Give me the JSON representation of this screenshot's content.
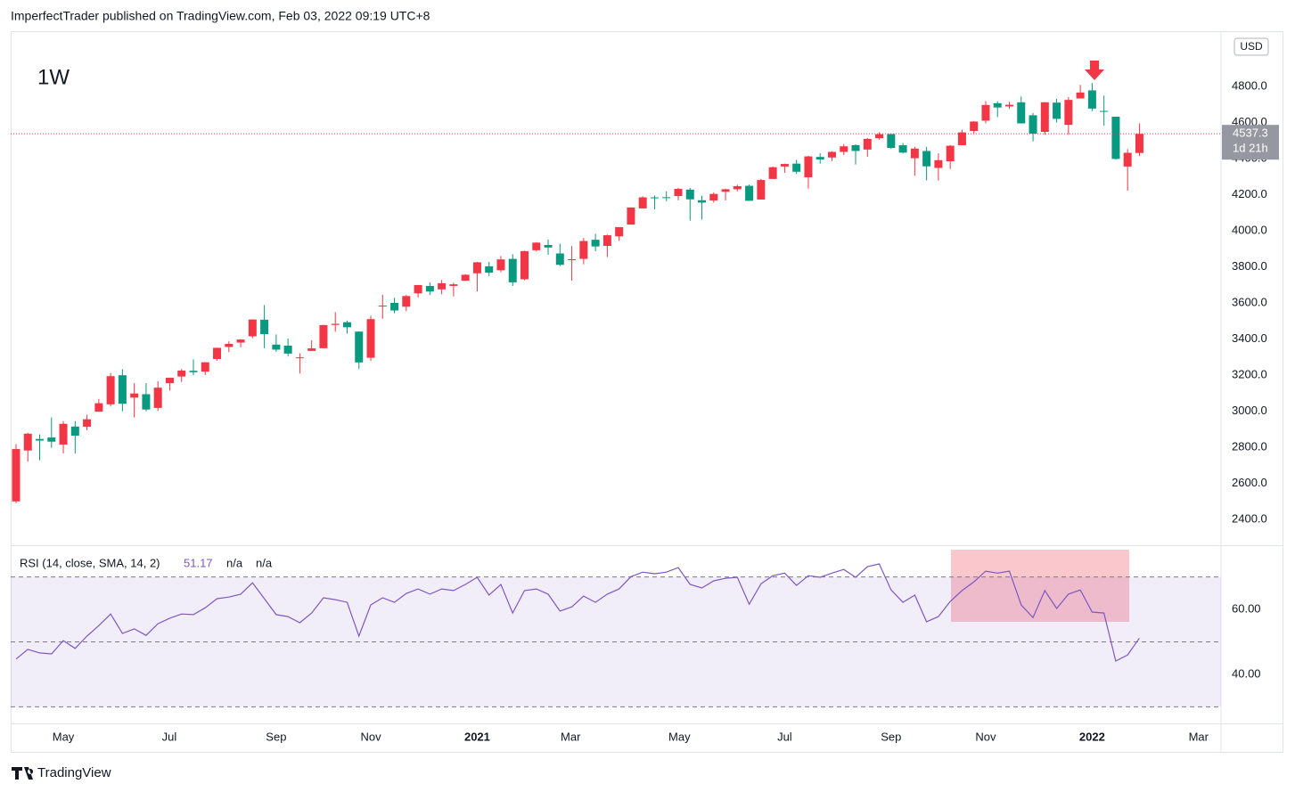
{
  "page": {
    "published": "ImperfectTrader published on TradingView.com, Feb 03, 2022 09:19 UTC+8",
    "brand": "TradingView"
  },
  "chart_data": {
    "type": "candlestick",
    "interval": "1W",
    "currency": "USD",
    "up_color": "#f23645",
    "down_color": "#089981",
    "open": [
      2500,
      2782,
      2846,
      2854,
      2815,
      2915,
      2914,
      2997,
      3038,
      3199,
      3075,
      3094,
      3018,
      3155,
      3192,
      3224,
      3219,
      3289,
      3356,
      3380,
      3415,
      3507,
      3369,
      3363,
      3295,
      3334,
      3349,
      3478,
      3493,
      3441,
      3296,
      3583,
      3600,
      3579,
      3653,
      3694,
      3675,
      3694,
      3723,
      3764,
      3803,
      3781,
      3844,
      3731,
      3892,
      3921,
      3874,
      3842,
      3844,
      3950,
      3916,
      3969,
      4034,
      4124,
      4185,
      4186,
      4192,
      4228,
      4169,
      4168,
      4216,
      4230,
      4249,
      4173,
      4287,
      4356,
      4372,
      4296,
      4409,
      4406,
      4437,
      4474,
      4450,
      4513,
      4536,
      4474,
      4402,
      4442,
      4348,
      4385,
      4474,
      4553,
      4610,
      4707,
      4689,
      4712,
      4640,
      4548,
      4710,
      4587,
      4733,
      4778,
      4664,
      4632,
      4356,
      4431
    ],
    "high": [
      2818,
      2880,
      2871,
      2965,
      2945,
      2945,
      2980,
      3068,
      3211,
      3233,
      3155,
      3155,
      3166,
      3186,
      3234,
      3287,
      3272,
      3352,
      3387,
      3399,
      3509,
      3588,
      3425,
      3403,
      3321,
      3393,
      3479,
      3549,
      3502,
      3441,
      3529,
      3645,
      3628,
      3644,
      3699,
      3713,
      3727,
      3712,
      3760,
      3827,
      3827,
      3860,
      3870,
      3889,
      3937,
      3951,
      3928,
      3915,
      3960,
      3983,
      3979,
      4020,
      4129,
      4191,
      4195,
      4219,
      4238,
      4238,
      4194,
      4213,
      4233,
      4255,
      4256,
      4287,
      4356,
      4372,
      4393,
      4415,
      4429,
      4440,
      4480,
      4480,
      4513,
      4546,
      4537,
      4486,
      4466,
      4465,
      4429,
      4475,
      4560,
      4608,
      4719,
      4718,
      4714,
      4744,
      4653,
      4713,
      4731,
      4741,
      4808,
      4819,
      4749,
      4632,
      4453,
      4595
    ],
    "low": [
      2490,
      2720,
      2728,
      2797,
      2766,
      2766,
      2894,
      2997,
      3026,
      2999,
      2965,
      2999,
      3001,
      3115,
      3162,
      3199,
      3200,
      3280,
      3328,
      3354,
      3404,
      3349,
      3329,
      3305,
      3209,
      3334,
      3349,
      3440,
      3430,
      3234,
      3279,
      3512,
      3543,
      3555,
      3630,
      3644,
      3648,
      3636,
      3722,
      3663,
      3749,
      3770,
      3694,
      3726,
      3885,
      3867,
      3804,
      3723,
      3814,
      3887,
      3854,
      3944,
      4034,
      4123,
      4118,
      4164,
      4169,
      4056,
      4062,
      4156,
      4168,
      4219,
      4165,
      4173,
      4286,
      4321,
      4315,
      4233,
      4372,
      4386,
      4420,
      4367,
      4410,
      4505,
      4453,
      4428,
      4305,
      4279,
      4278,
      4342,
      4474,
      4537,
      4595,
      4630,
      4675,
      4595,
      4495,
      4532,
      4600,
      4532,
      4733,
      4662,
      4582,
      4395,
      4222,
      4414
    ],
    "close": [
      2790,
      2875,
      2837,
      2831,
      2930,
      2864,
      2955,
      3044,
      3194,
      3041,
      3098,
      3009,
      3130,
      3185,
      3225,
      3216,
      3271,
      3351,
      3373,
      3397,
      3508,
      3427,
      3341,
      3319,
      3298,
      3348,
      3477,
      3484,
      3465,
      3270,
      3510,
      3585,
      3558,
      3638,
      3699,
      3663,
      3709,
      3703,
      3756,
      3825,
      3768,
      3841,
      3714,
      3887,
      3934,
      3907,
      3811,
      3842,
      3943,
      3913,
      3975,
      4020,
      4129,
      4185,
      4180,
      4181,
      4232,
      4174,
      4156,
      4204,
      4230,
      4247,
      4166,
      4281,
      4352,
      4370,
      4327,
      4412,
      4395,
      4437,
      4468,
      4442,
      4509,
      4535,
      4459,
      4433,
      4455,
      4357,
      4391,
      4471,
      4545,
      4605,
      4697,
      4683,
      4698,
      4595,
      4538,
      4712,
      4620,
      4725,
      4766,
      4677,
      4663,
      4398,
      4432,
      4537
    ],
    "last_price": 4537.3,
    "countdown": "1d 21h",
    "xlim": [
      -0.45,
      101.9
    ],
    "ylim": [
      2257,
      5106
    ],
    "yticks": [
      {
        "value": 2400,
        "label": "2400.0"
      },
      {
        "value": 2600,
        "label": "2600.0"
      },
      {
        "value": 2800,
        "label": "2800.0"
      },
      {
        "value": 3000,
        "label": "3000.0"
      },
      {
        "value": 3200,
        "label": "3200.0"
      },
      {
        "value": 3400,
        "label": "3400.0"
      },
      {
        "value": 3600,
        "label": "3600.0"
      },
      {
        "value": 3800,
        "label": "3800.0"
      },
      {
        "value": 4000,
        "label": "4000.0"
      },
      {
        "value": 4200,
        "label": "4200.0"
      },
      {
        "value": 4400,
        "label": "4400.0"
      },
      {
        "value": 4600,
        "label": "4600.0"
      },
      {
        "value": 4800,
        "label": "4800.0"
      }
    ],
    "xticks": [
      {
        "value": 4.0,
        "label": "May"
      },
      {
        "value": 12.96,
        "label": "Jul"
      },
      {
        "value": 22.0,
        "label": "Sep"
      },
      {
        "value": 30.0,
        "label": "Nov"
      },
      {
        "value": 39.0,
        "label": "2021"
      },
      {
        "value": 46.9,
        "label": "Mar"
      },
      {
        "value": 56.1,
        "label": "May"
      },
      {
        "value": 65.0,
        "label": "Jul"
      },
      {
        "value": 74.0,
        "label": "Sep"
      },
      {
        "value": 82.0,
        "label": "Nov"
      },
      {
        "value": 91.0,
        "label": "2022"
      },
      {
        "value": 100.0,
        "label": "Mar"
      }
    ],
    "rsi": {
      "type": "line",
      "name": "RSI (14, close, SMA, 14, 2)",
      "value_label": "51.17",
      "extra_labels": [
        "n/a",
        "n/a"
      ],
      "color": "#7e57c2",
      "values": [
        44.7,
        47.7,
        46.6,
        46.3,
        50.4,
        48,
        51.8,
        55,
        58.6,
        52.6,
        54,
        52,
        55.6,
        57.3,
        58.6,
        58.4,
        60.5,
        63.3,
        63.8,
        64.7,
        68.2,
        63.3,
        58.4,
        57.8,
        55.9,
        58.9,
        63.6,
        63,
        62.2,
        51.8,
        61.4,
        63.6,
        62.2,
        64.9,
        66.3,
        64.7,
        66.3,
        65.8,
        67.7,
        69.9,
        64.4,
        67.7,
        58.9,
        65.8,
        66.3,
        64.7,
        59.5,
        60.8,
        64.1,
        62.2,
        64.7,
        66.3,
        70.1,
        71.5,
        71,
        71.5,
        72.9,
        67.7,
        66.6,
        68.8,
        69.6,
        69.9,
        61.6,
        67.9,
        70.4,
        71.2,
        67.4,
        70.4,
        69.9,
        71.2,
        72.3,
        69.9,
        73.2,
        74,
        66,
        62.2,
        64.4,
        56.2,
        57.8,
        62.5,
        65.8,
        68.5,
        71.8,
        71.2,
        71.8,
        61.4,
        57.5,
        65.8,
        60.3,
        64.7,
        66,
        59.2,
        58.9,
        44.1,
        46,
        51.17
      ],
      "levels": [
        70,
        50,
        30
      ],
      "ylim": [
        24.9,
        79.5
      ],
      "yticks": [
        {
          "value": 40,
          "label": "40.00"
        },
        {
          "value": 60,
          "label": "60.00"
        }
      ]
    }
  }
}
